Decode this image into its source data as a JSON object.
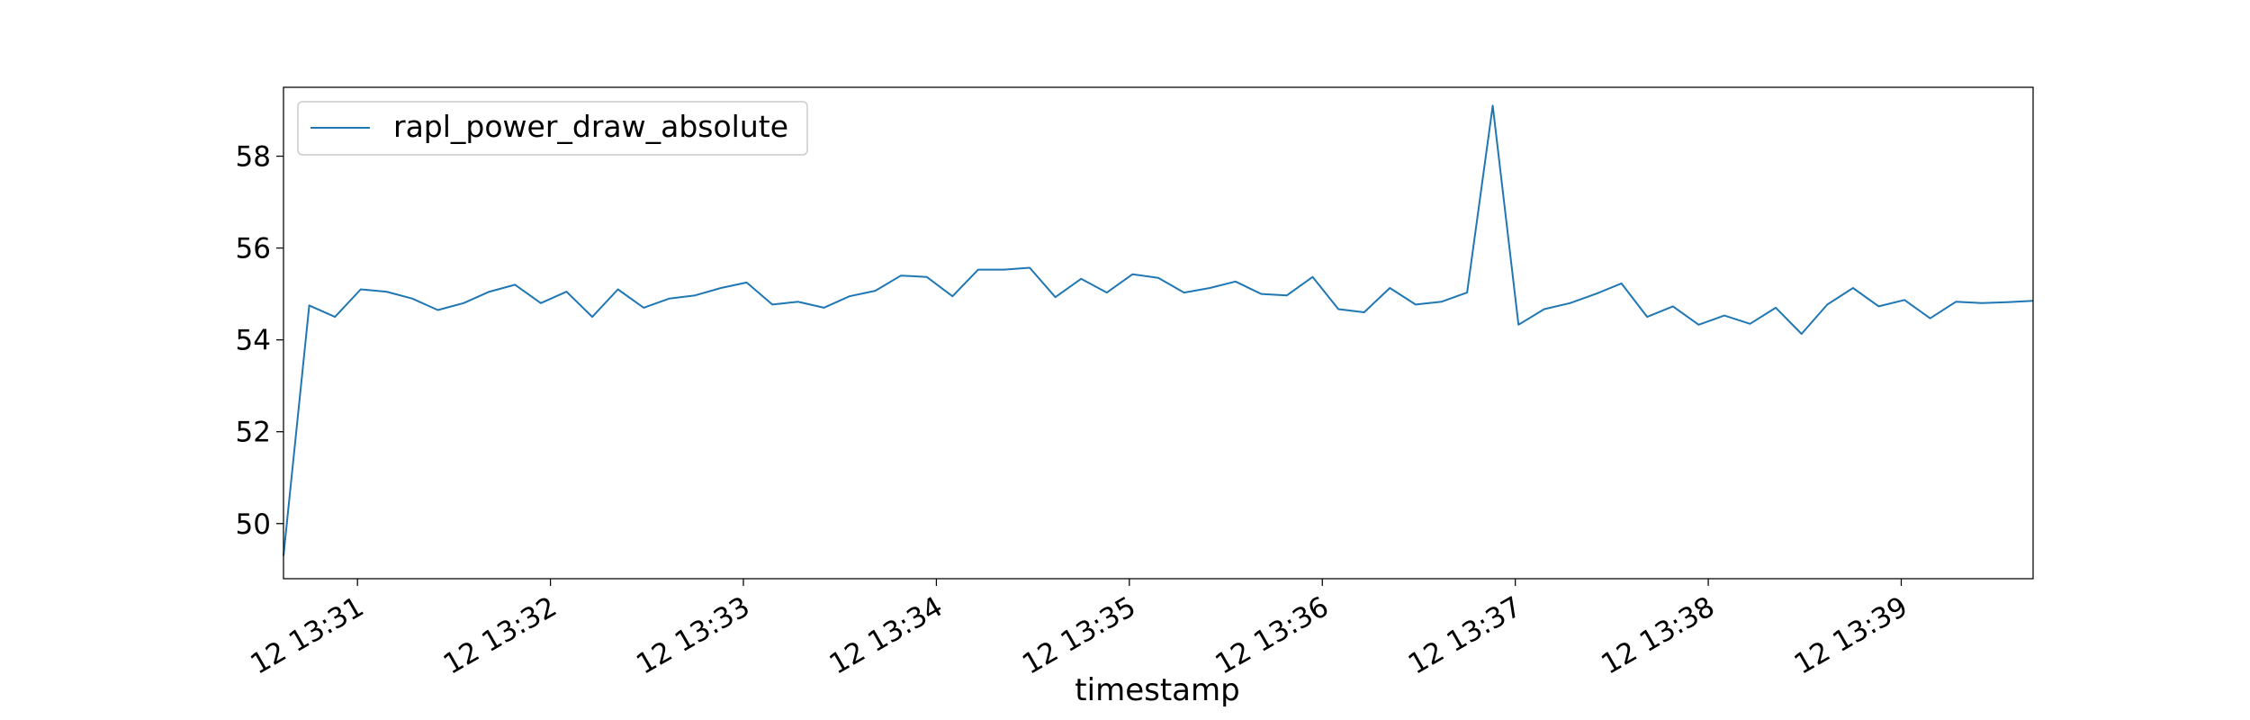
{
  "chart_data": {
    "type": "line",
    "title": "",
    "xlabel": "timestamp",
    "ylabel": "",
    "x_tick_labels": [
      "12 13:31",
      "12 13:32",
      "12 13:33",
      "12 13:34",
      "12 13:35",
      "12 13:36",
      "12 13:37",
      "12 13:38",
      "12 13:39"
    ],
    "y_ticks": [
      50,
      52,
      54,
      56,
      58
    ],
    "ylim": [
      48.8,
      59.5
    ],
    "xlim": [
      "12 13:30:37",
      "12 13:39:41"
    ],
    "legend_position": "upper-left",
    "series": [
      {
        "name": "rapl_power_draw_absolute",
        "color": "#1f77b4",
        "x": [
          "12 13:30:37",
          "12 13:30:45",
          "12 13:30:53",
          "12 13:31:01",
          "12 13:31:09",
          "12 13:31:17",
          "12 13:31:25",
          "12 13:31:33",
          "12 13:31:41",
          "12 13:31:49",
          "12 13:31:57",
          "12 13:32:05",
          "12 13:32:13",
          "12 13:32:21",
          "12 13:32:29",
          "12 13:32:37",
          "12 13:32:45",
          "12 13:32:53",
          "12 13:33:01",
          "12 13:33:09",
          "12 13:33:17",
          "12 13:33:25",
          "12 13:33:33",
          "12 13:33:41",
          "12 13:33:49",
          "12 13:33:57",
          "12 13:34:05",
          "12 13:34:13",
          "12 13:34:21",
          "12 13:34:29",
          "12 13:34:37",
          "12 13:34:45",
          "12 13:34:53",
          "12 13:35:01",
          "12 13:35:09",
          "12 13:35:17",
          "12 13:35:25",
          "12 13:35:33",
          "12 13:35:41",
          "12 13:35:49",
          "12 13:35:57",
          "12 13:36:05",
          "12 13:36:13",
          "12 13:36:21",
          "12 13:36:29",
          "12 13:36:37",
          "12 13:36:45",
          "12 13:36:53",
          "12 13:37:01",
          "12 13:37:09",
          "12 13:37:17",
          "12 13:37:25",
          "12 13:37:33",
          "12 13:37:41",
          "12 13:37:49",
          "12 13:37:57",
          "12 13:38:05",
          "12 13:38:13",
          "12 13:38:21",
          "12 13:38:29",
          "12 13:38:37",
          "12 13:38:45",
          "12 13:38:53",
          "12 13:39:01",
          "12 13:39:09",
          "12 13:39:17",
          "12 13:39:25",
          "12 13:39:33",
          "12 13:39:41"
        ],
        "values": [
          49.3,
          54.75,
          54.5,
          55.1,
          55.05,
          54.9,
          54.65,
          54.8,
          55.05,
          55.2,
          54.8,
          55.05,
          54.5,
          55.1,
          54.7,
          54.9,
          54.97,
          55.13,
          55.25,
          54.77,
          54.83,
          54.7,
          54.95,
          55.07,
          55.4,
          55.37,
          54.95,
          55.53,
          55.53,
          55.57,
          54.93,
          55.33,
          55.03,
          55.43,
          55.35,
          55.03,
          55.13,
          55.27,
          55.0,
          54.97,
          55.37,
          54.67,
          54.6,
          55.13,
          54.77,
          54.83,
          55.03,
          59.1,
          54.33,
          54.67,
          54.8,
          55.0,
          55.23,
          54.5,
          54.73,
          54.33,
          54.53,
          54.35,
          54.7,
          54.13,
          54.77,
          55.13,
          54.73,
          54.87,
          54.47,
          54.83,
          54.8,
          54.82,
          54.85
        ]
      }
    ]
  }
}
